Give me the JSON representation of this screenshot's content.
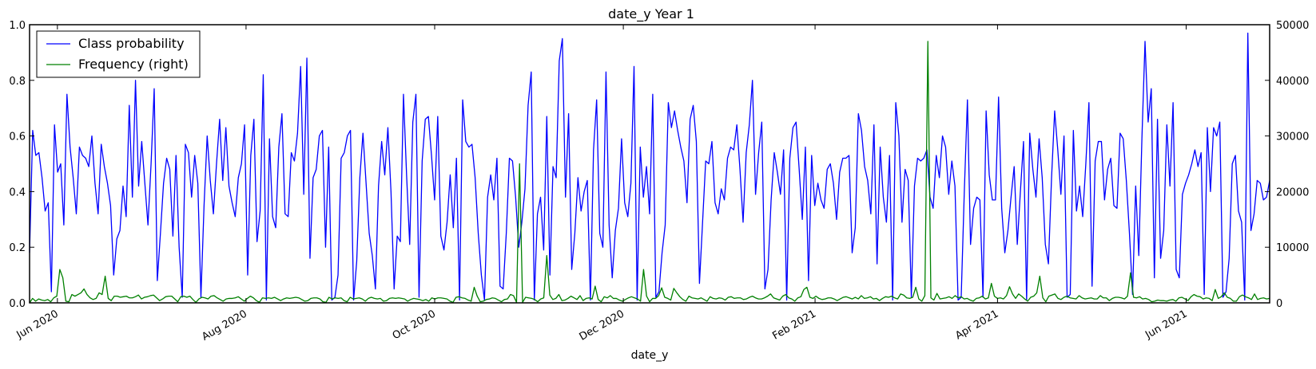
{
  "chart_data": {
    "type": "line",
    "title": "date_y Year 1",
    "xlabel": "date_y",
    "ylabel": "",
    "ylabel_right": "",
    "x_start": "2020-05-23",
    "x_end": "2021-06-28",
    "x_ticks": [
      {
        "date": "2020-06-01",
        "label": "Jun 2020"
      },
      {
        "date": "2020-08-01",
        "label": "Aug 2020"
      },
      {
        "date": "2020-10-01",
        "label": "Oct 2020"
      },
      {
        "date": "2020-12-01",
        "label": "Dec 2020"
      },
      {
        "date": "2021-02-01",
        "label": "Feb 2021"
      },
      {
        "date": "2021-04-01",
        "label": "Apr 2021"
      },
      {
        "date": "2021-06-01",
        "label": "Jun 2021"
      }
    ],
    "ylim_left": [
      0,
      1.0
    ],
    "yticks_left": [
      "0.0",
      "0.2",
      "0.4",
      "0.6",
      "0.8",
      "1.0"
    ],
    "ylim_right": [
      0,
      50000
    ],
    "yticks_right": [
      "0",
      "10000",
      "20000",
      "30000",
      "40000",
      "50000"
    ],
    "legend_position": "top-left",
    "grid": false,
    "series": [
      {
        "name": "Class probability",
        "color": "#0000ff",
        "axis": "left",
        "values": [
          0.18,
          0.62,
          0.53,
          0.54,
          0.45,
          0.33,
          0.36,
          0.04,
          0.64,
          0.47,
          0.5,
          0.28,
          0.75,
          0.56,
          0.45,
          0.32,
          0.56,
          0.53,
          0.52,
          0.49,
          0.6,
          0.43,
          0.32,
          0.57,
          0.49,
          0.43,
          0.35,
          0.1,
          0.23,
          0.26,
          0.42,
          0.31,
          0.71,
          0.38,
          0.8,
          0.42,
          0.58,
          0.43,
          0.28,
          0.5,
          0.77,
          0.08,
          0.25,
          0.43,
          0.52,
          0.48,
          0.24,
          0.53,
          0.2,
          0.02,
          0.57,
          0.54,
          0.38,
          0.53,
          0.43,
          0.02,
          0.35,
          0.6,
          0.44,
          0.32,
          0.5,
          0.66,
          0.44,
          0.63,
          0.42,
          0.36,
          0.31,
          0.45,
          0.5,
          0.64,
          0.1,
          0.53,
          0.66,
          0.22,
          0.33,
          0.82,
          0.01,
          0.59,
          0.31,
          0.27,
          0.56,
          0.68,
          0.32,
          0.31,
          0.54,
          0.51,
          0.61,
          0.85,
          0.39,
          0.88,
          0.16,
          0.45,
          0.48,
          0.6,
          0.62,
          0.2,
          0.56,
          0.01,
          0.02,
          0.1,
          0.52,
          0.54,
          0.6,
          0.62,
          0.01,
          0.15,
          0.45,
          0.61,
          0.43,
          0.25,
          0.17,
          0.05,
          0.42,
          0.58,
          0.46,
          0.63,
          0.4,
          0.05,
          0.24,
          0.22,
          0.75,
          0.46,
          0.21,
          0.65,
          0.75,
          0.02,
          0.51,
          0.66,
          0.67,
          0.53,
          0.37,
          0.67,
          0.24,
          0.19,
          0.29,
          0.46,
          0.27,
          0.52,
          0.01,
          0.73,
          0.58,
          0.56,
          0.57,
          0.45,
          0.25,
          0.1,
          0.01,
          0.38,
          0.46,
          0.37,
          0.52,
          0.06,
          0.05,
          0.25,
          0.52,
          0.51,
          0.38,
          0.2,
          0.29,
          0.41,
          0.71,
          0.83,
          0.01,
          0.32,
          0.38,
          0.19,
          0.67,
          0.1,
          0.49,
          0.45,
          0.87,
          0.95,
          0.38,
          0.68,
          0.12,
          0.25,
          0.45,
          0.33,
          0.4,
          0.44,
          0.01,
          0.55,
          0.73,
          0.25,
          0.2,
          0.83,
          0.28,
          0.09,
          0.26,
          0.34,
          0.59,
          0.36,
          0.31,
          0.43,
          0.85,
          0.01,
          0.56,
          0.38,
          0.49,
          0.32,
          0.75,
          0.02,
          0.04,
          0.18,
          0.28,
          0.72,
          0.63,
          0.69,
          0.62,
          0.56,
          0.51,
          0.36,
          0.66,
          0.71,
          0.58,
          0.07,
          0.29,
          0.51,
          0.5,
          0.58,
          0.36,
          0.32,
          0.41,
          0.37,
          0.52,
          0.56,
          0.55,
          0.64,
          0.48,
          0.29,
          0.54,
          0.64,
          0.8,
          0.39,
          0.54,
          0.65,
          0.05,
          0.12,
          0.37,
          0.54,
          0.47,
          0.39,
          0.55,
          0.01,
          0.52,
          0.63,
          0.65,
          0.48,
          0.3,
          0.56,
          0.08,
          0.53,
          0.35,
          0.43,
          0.37,
          0.34,
          0.48,
          0.5,
          0.43,
          0.3,
          0.47,
          0.52,
          0.52,
          0.53,
          0.18,
          0.27,
          0.68,
          0.62,
          0.49,
          0.44,
          0.32,
          0.64,
          0.14,
          0.56,
          0.38,
          0.29,
          0.53,
          0.01,
          0.72,
          0.6,
          0.29,
          0.48,
          0.44,
          0.02,
          0.42,
          0.52,
          0.51,
          0.52,
          0.55,
          0.38,
          0.34,
          0.53,
          0.45,
          0.6,
          0.56,
          0.39,
          0.51,
          0.42,
          0.01,
          0.02,
          0.4,
          0.73,
          0.21,
          0.34,
          0.38,
          0.37,
          0.02,
          0.69,
          0.46,
          0.37,
          0.37,
          0.74,
          0.34,
          0.18,
          0.26,
          0.38,
          0.49,
          0.21,
          0.4,
          0.58,
          0.01,
          0.61,
          0.48,
          0.38,
          0.59,
          0.45,
          0.21,
          0.14,
          0.45,
          0.69,
          0.55,
          0.39,
          0.6,
          0.02,
          0.03,
          0.62,
          0.33,
          0.42,
          0.31,
          0.5,
          0.72,
          0.06,
          0.51,
          0.58,
          0.58,
          0.37,
          0.48,
          0.52,
          0.35,
          0.34,
          0.61,
          0.59,
          0.44,
          0.25,
          0.03,
          0.42,
          0.17,
          0.59,
          0.94,
          0.65,
          0.77,
          0.09,
          0.66,
          0.16,
          0.26,
          0.64,
          0.42,
          0.72,
          0.12,
          0.09,
          0.39,
          0.43,
          0.46,
          0.5,
          0.55,
          0.49,
          0.54,
          0.03,
          0.63,
          0.4,
          0.63,
          0.6,
          0.65,
          0.02,
          0.04,
          0.16,
          0.5,
          0.53,
          0.33,
          0.29,
          0.01,
          0.97,
          0.26,
          0.32,
          0.44,
          0.43,
          0.37,
          0.38,
          0.44
        ]
      },
      {
        "name": "Frequency (right)",
        "color": "#008000",
        "axis": "right",
        "values": [
          0,
          800,
          300,
          700,
          500,
          400,
          600,
          200,
          900,
          1200,
          6000,
          4500,
          300,
          200,
          1500,
          1200,
          1500,
          1800,
          2500,
          1500,
          900,
          600,
          800,
          1800,
          1500,
          4800,
          800,
          400,
          1200,
          1200,
          1000,
          1100,
          1200,
          900,
          900,
          1100,
          1400,
          700,
          1000,
          1100,
          1300,
          1400,
          900,
          400,
          700,
          1100,
          1200,
          1200,
          700,
          200,
          1100,
          1200,
          1000,
          1200,
          600,
          100,
          700,
          1000,
          900,
          700,
          1200,
          1300,
          900,
          600,
          300,
          700,
          800,
          800,
          900,
          1100,
          700,
          300,
          800,
          1200,
          900,
          400,
          100,
          900,
          800,
          900,
          800,
          1000,
          700,
          400,
          700,
          900,
          800,
          900,
          1000,
          900,
          600,
          300,
          400,
          800,
          900,
          900,
          700,
          200,
          100,
          1000,
          700,
          900,
          800,
          900,
          400,
          200,
          1000,
          700,
          800,
          900,
          700,
          300,
          800,
          1000,
          800,
          700,
          800,
          300,
          400,
          800,
          900,
          800,
          900,
          800,
          700,
          300,
          600,
          800,
          700,
          600,
          400,
          600,
          300,
          900,
          700,
          900,
          900,
          800,
          700,
          300,
          100,
          1000,
          1100,
          900,
          800,
          500,
          300,
          2800,
          1200,
          200,
          300,
          600,
          700,
          900,
          800,
          500,
          200,
          600,
          700,
          1500,
          1300,
          100,
          25000,
          100,
          1000,
          900,
          800,
          600,
          200,
          700,
          900,
          8500,
          1400,
          600,
          800,
          1500,
          400,
          500,
          800,
          1200,
          900,
          600,
          1300,
          400,
          800,
          900,
          700,
          3000,
          600,
          200,
          1100,
          900,
          1300,
          800,
          800,
          500,
          300,
          600,
          900,
          1100,
          900,
          700,
          300,
          6000,
          1200,
          200,
          800,
          800,
          1300,
          2700,
          1000,
          800,
          500,
          2600,
          1800,
          1100,
          600,
          300,
          1200,
          900,
          800,
          700,
          900,
          600,
          300,
          1100,
          800,
          700,
          900,
          800,
          500,
          1000,
          1100,
          800,
          900,
          900,
          600,
          700,
          1000,
          1200,
          900,
          700,
          700,
          900,
          1200,
          1600,
          900,
          700,
          500,
          1200,
          1500,
          900,
          700,
          300,
          900,
          1100,
          2400,
          2800,
          1000,
          800,
          1200,
          800,
          600,
          700,
          900,
          900,
          700,
          400,
          700,
          1000,
          1100,
          900,
          700,
          1000,
          700,
          1300,
          800,
          900,
          1100,
          700,
          800,
          400,
          800,
          1100,
          1000,
          1200,
          900,
          700,
          1600,
          1400,
          900,
          800,
          1000,
          2800,
          700,
          300,
          1300,
          47000,
          900,
          500,
          1700,
          700,
          800,
          900,
          1100,
          800,
          1300,
          900,
          1100,
          700,
          800,
          500,
          300,
          800,
          900,
          1200,
          700,
          900,
          3500,
          1200,
          800,
          900,
          700,
          1300,
          2900,
          1600,
          800,
          1600,
          1200,
          700,
          300,
          1000,
          1200,
          1800,
          4800,
          900,
          200,
          1200,
          1400,
          1600,
          800,
          600,
          1000,
          1200,
          900,
          800,
          700,
          1300,
          900,
          700,
          800,
          900,
          700,
          700,
          1300,
          900,
          900,
          400,
          800,
          1000,
          1000,
          900,
          700,
          1200,
          5400,
          1000,
          900,
          1100,
          700,
          800,
          600,
          200,
          300,
          500,
          400,
          400,
          300,
          500,
          600,
          300,
          900,
          1000,
          700,
          400,
          1100,
          1500,
          1200,
          1100,
          700,
          900,
          800,
          400,
          2400,
          800,
          1100,
          1800,
          1000,
          800,
          300,
          300,
          1100,
          1400,
          1100,
          900,
          600,
          1600,
          600,
          800,
          900,
          700,
          800
        ]
      }
    ]
  }
}
